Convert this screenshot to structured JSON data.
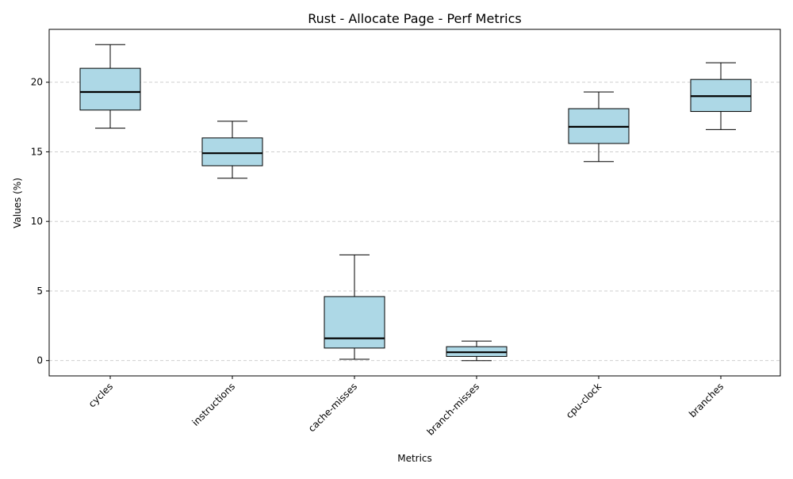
{
  "chart_data": {
    "type": "box",
    "title": "Rust - Allocate Page - Perf Metrics",
    "xlabel": "Metrics",
    "ylabel": "Values (%)",
    "ylim": [
      -1.1,
      23.8
    ],
    "yticks": [
      0,
      5,
      10,
      15,
      20
    ],
    "grid": "y-dashed",
    "box_color": "#add8e6",
    "categories": [
      "cycles",
      "instructions",
      "cache-misses",
      "branch-misses",
      "cpu-clock",
      "branches"
    ],
    "boxes": [
      {
        "whisker_low": 16.7,
        "q1": 18.0,
        "median": 19.3,
        "q3": 21.0,
        "whisker_high": 22.7
      },
      {
        "whisker_low": 13.1,
        "q1": 14.0,
        "median": 14.9,
        "q3": 16.0,
        "whisker_high": 17.2
      },
      {
        "whisker_low": 0.1,
        "q1": 0.9,
        "median": 1.6,
        "q3": 4.6,
        "whisker_high": 7.6
      },
      {
        "whisker_low": 0.0,
        "q1": 0.3,
        "median": 0.6,
        "q3": 1.0,
        "whisker_high": 1.4
      },
      {
        "whisker_low": 14.3,
        "q1": 15.6,
        "median": 16.8,
        "q3": 18.1,
        "whisker_high": 19.3
      },
      {
        "whisker_low": 16.6,
        "q1": 17.9,
        "median": 19.0,
        "q3": 20.2,
        "whisker_high": 21.4
      }
    ]
  }
}
